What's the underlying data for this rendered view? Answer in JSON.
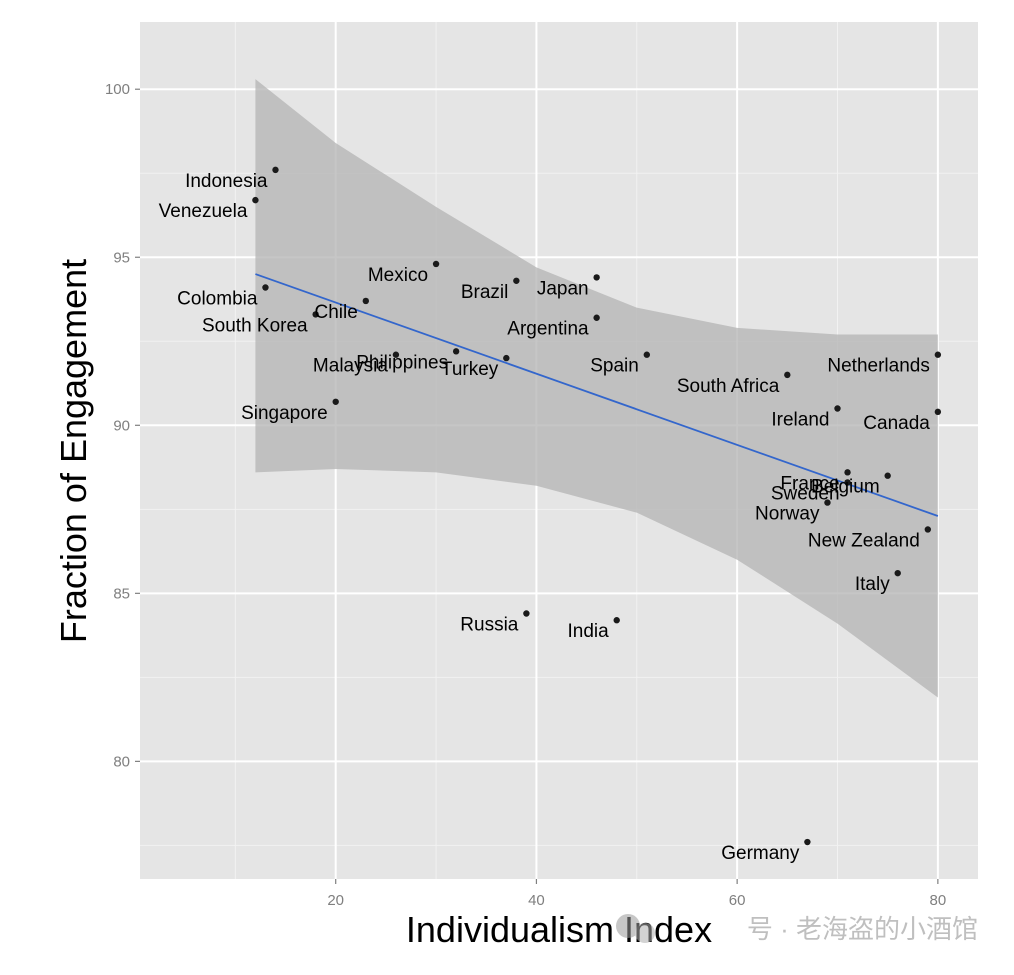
{
  "chart_data": {
    "type": "scatter",
    "title": "",
    "xlabel": "Individualism Index",
    "ylabel": "Fraction of Engagement",
    "xlim": [
      0.5,
      84
    ],
    "ylim": [
      76.5,
      102
    ],
    "x_ticks": [
      20,
      40,
      60,
      80
    ],
    "y_ticks": [
      80,
      85,
      90,
      95,
      100
    ],
    "grid": true,
    "legend": "none",
    "colors": {
      "panel": "#e5e5e5",
      "grid": "#ffffff",
      "point": "#1a1a1a",
      "trend": "#3366cc",
      "band": "#b3b3b3",
      "text": "#000000",
      "tick_text": "#7f7f7f"
    },
    "points": [
      {
        "label": "Indonesia",
        "x": 14,
        "y": 97.6
      },
      {
        "label": "Venezuela",
        "x": 12,
        "y": 96.7
      },
      {
        "label": "Colombia",
        "x": 13,
        "y": 94.1
      },
      {
        "label": "Chile",
        "x": 23,
        "y": 93.7
      },
      {
        "label": "South Korea",
        "x": 18,
        "y": 93.3
      },
      {
        "label": "Mexico",
        "x": 30,
        "y": 94.8
      },
      {
        "label": "Brazil",
        "x": 38,
        "y": 94.3
      },
      {
        "label": "Japan",
        "x": 46,
        "y": 94.4
      },
      {
        "label": "Argentina",
        "x": 46,
        "y": 93.2
      },
      {
        "label": "Malaysia",
        "x": 26,
        "y": 92.1
      },
      {
        "label": "Philippines",
        "x": 32,
        "y": 92.2
      },
      {
        "label": "Turkey",
        "x": 37,
        "y": 92.0
      },
      {
        "label": "Spain",
        "x": 51,
        "y": 92.1
      },
      {
        "label": "South Africa",
        "x": 65,
        "y": 91.5
      },
      {
        "label": "Netherlands",
        "x": 80,
        "y": 92.1
      },
      {
        "label": "Singapore",
        "x": 20,
        "y": 90.7
      },
      {
        "label": "Ireland",
        "x": 70,
        "y": 90.5
      },
      {
        "label": "Canada",
        "x": 80,
        "y": 90.4
      },
      {
        "label": "France",
        "x": 71,
        "y": 88.6
      },
      {
        "label": "Belgium",
        "x": 75,
        "y": 88.5
      },
      {
        "label": "Sweden",
        "x": 71,
        "y": 88.3
      },
      {
        "label": "Norway",
        "x": 69,
        "y": 87.7
      },
      {
        "label": "New Zealand",
        "x": 79,
        "y": 86.9
      },
      {
        "label": "Italy",
        "x": 76,
        "y": 85.6
      },
      {
        "label": "Russia",
        "x": 39,
        "y": 84.4
      },
      {
        "label": "India",
        "x": 48,
        "y": 84.2
      },
      {
        "label": "Germany",
        "x": 67,
        "y": 77.6
      }
    ],
    "trend_line": {
      "x": [
        12,
        80
      ],
      "y": [
        94.5,
        87.3
      ]
    },
    "confidence_band": {
      "x": [
        12,
        20,
        30,
        40,
        50,
        60,
        70,
        80
      ],
      "upper": [
        100.3,
        98.4,
        96.5,
        94.7,
        93.5,
        92.9,
        92.7,
        92.7
      ],
      "lower": [
        88.6,
        88.7,
        88.6,
        88.2,
        87.4,
        86.0,
        84.1,
        81.9
      ]
    }
  },
  "watermark": {
    "text": "号 · 老海盗的小酒馆"
  }
}
